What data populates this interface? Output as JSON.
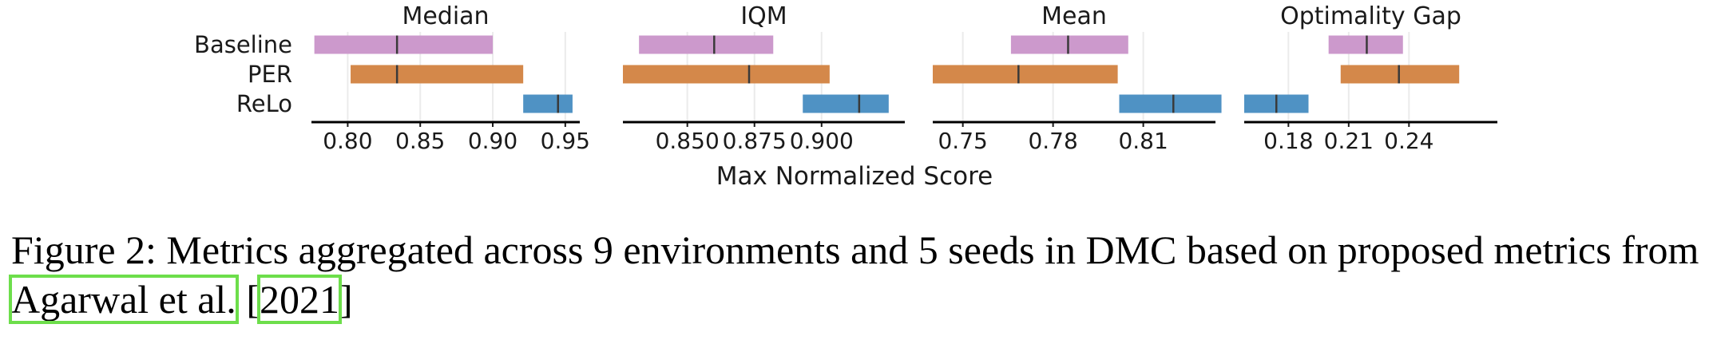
{
  "chart_data": {
    "type": "interval",
    "xlabel": "Max Normalized Score",
    "methods": [
      "Baseline",
      "PER",
      "ReLo"
    ],
    "colors": {
      "Baseline": "#cc99cc",
      "PER": "#d4884a",
      "ReLo": "#4f92c4"
    },
    "grid": true,
    "panels": [
      {
        "title": "Median",
        "xlim": [
          0.775,
          0.96
        ],
        "ticks": [
          "0.80",
          "0.85",
          "0.90",
          "0.95"
        ],
        "intervals": [
          {
            "method": "Baseline",
            "low": 0.777,
            "high": 0.9,
            "point": 0.834
          },
          {
            "method": "PER",
            "low": 0.802,
            "high": 0.921,
            "point": 0.834
          },
          {
            "method": "ReLo",
            "low": 0.921,
            "high": 0.955,
            "point": 0.945
          }
        ]
      },
      {
        "title": "IQM",
        "xlim": [
          0.826,
          0.931
        ],
        "ticks": [
          "0.850",
          "0.875",
          "0.900"
        ],
        "intervals": [
          {
            "method": "Baseline",
            "low": 0.832,
            "high": 0.882,
            "point": 0.86
          },
          {
            "method": "PER",
            "low": 0.826,
            "high": 0.903,
            "point": 0.873
          },
          {
            "method": "ReLo",
            "low": 0.893,
            "high": 0.925,
            "point": 0.914
          }
        ]
      },
      {
        "title": "Mean",
        "xlim": [
          0.74,
          0.834
        ],
        "ticks": [
          "0.75",
          "0.78",
          "0.81"
        ],
        "intervals": [
          {
            "method": "Baseline",
            "low": 0.766,
            "high": 0.805,
            "point": 0.785
          },
          {
            "method": "PER",
            "low": 0.74,
            "high": 0.8015,
            "point": 0.7685
          },
          {
            "method": "ReLo",
            "low": 0.802,
            "high": 0.836,
            "point": 0.82
          }
        ]
      },
      {
        "title": "Optimality Gap",
        "xlim": [
          0.158,
          0.284
        ],
        "ticks": [
          "0.18",
          "0.21",
          "0.24"
        ],
        "intervals": [
          {
            "method": "Baseline",
            "low": 0.2,
            "high": 0.237,
            "point": 0.219
          },
          {
            "method": "PER",
            "low": 0.206,
            "high": 0.265,
            "point": 0.235
          },
          {
            "method": "ReLo",
            "low": 0.158,
            "high": 0.19,
            "point": 0.174
          }
        ]
      }
    ]
  },
  "caption": {
    "prefix": "Figure 2: Metrics aggregated across 9 environments and 5 seeds in DMC based on proposed metrics from ",
    "cite_author": "Agarwal et al.",
    "mid": " [",
    "cite_year": "2021",
    "suffix": "]"
  }
}
